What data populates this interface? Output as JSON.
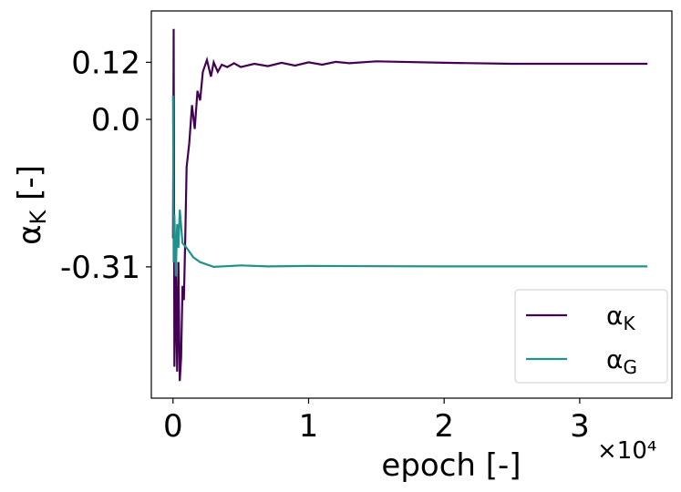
{
  "chart_data": {
    "type": "line",
    "xlabel": "epoch [-]",
    "ylabel": "αK [-]",
    "x_offset_label": "×10⁴",
    "xlim": [
      -1600,
      36800
    ],
    "ylim": [
      -0.586,
      0.228
    ],
    "xticks": [
      {
        "value": 0,
        "label": "0"
      },
      {
        "value": 10000,
        "label": "1"
      },
      {
        "value": 20000,
        "label": "2"
      },
      {
        "value": 30000,
        "label": "3"
      }
    ],
    "yticks": [
      0.12,
      {
        "value": 0,
        "label": "0.0"
      },
      -0.31
    ],
    "legend": "lower right",
    "series": [
      {
        "name": "αK",
        "color": "#440154",
        "x": [
          0,
          50,
          100,
          200,
          300,
          400,
          500,
          600,
          700,
          800,
          900,
          1000,
          1200,
          1400,
          1600,
          1800,
          2000,
          2200,
          2500,
          2800,
          3000,
          3300,
          3600,
          4000,
          4500,
          5000,
          6000,
          7000,
          8000,
          9000,
          10000,
          11000,
          12000,
          13000,
          15000,
          20000,
          25000,
          30000,
          35000
        ],
        "values": [
          -0.25,
          0.19,
          -0.52,
          -0.3,
          -0.53,
          -0.3,
          -0.55,
          -0.5,
          -0.35,
          -0.38,
          -0.25,
          -0.1,
          -0.05,
          0.03,
          -0.02,
          0.06,
          0.04,
          0.1,
          0.125,
          0.09,
          0.12,
          0.1,
          0.115,
          0.11,
          0.118,
          0.11,
          0.117,
          0.112,
          0.119,
          0.113,
          0.12,
          0.115,
          0.121,
          0.118,
          0.122,
          0.119,
          0.117,
          0.117,
          0.117
        ]
      },
      {
        "name": "αG",
        "color": "#21918c",
        "x": [
          0,
          50,
          100,
          200,
          300,
          400,
          500,
          700,
          1000,
          1500,
          2000,
          2500,
          3000,
          5000,
          7000,
          10000,
          20000,
          35000
        ],
        "values": [
          0.05,
          -0.3,
          -0.2,
          -0.33,
          -0.22,
          -0.27,
          -0.19,
          -0.26,
          -0.27,
          -0.29,
          -0.3,
          -0.305,
          -0.31,
          -0.307,
          -0.309,
          -0.308,
          -0.309,
          -0.309
        ]
      }
    ]
  }
}
